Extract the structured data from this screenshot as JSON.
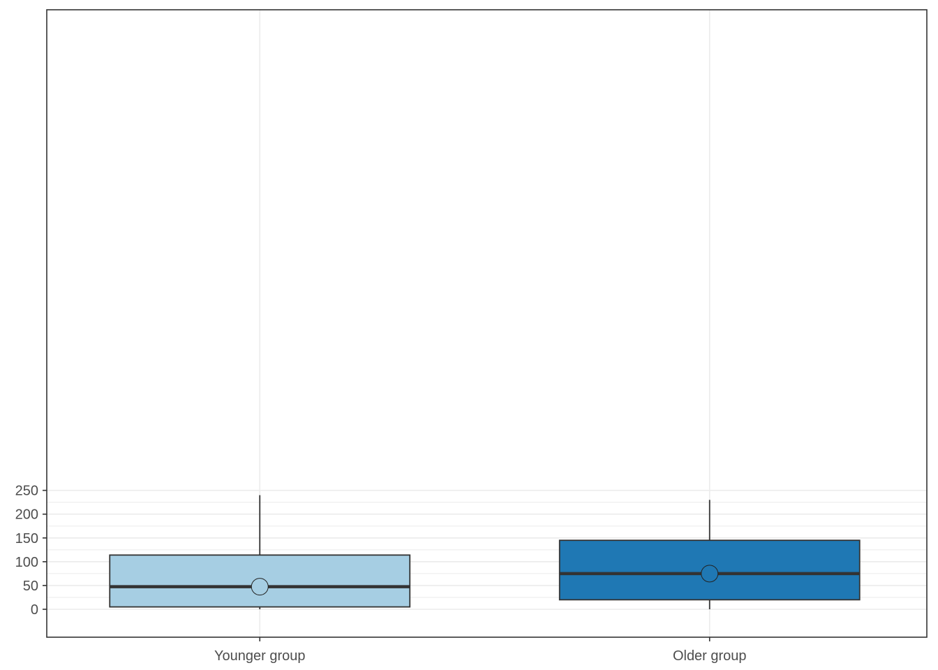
{
  "chart_data": {
    "type": "boxplot",
    "categories": [
      "Younger group",
      "Older group"
    ],
    "boxes": [
      {
        "category": "Younger group",
        "whisker_low": 0,
        "q1": 5,
        "median": 47.5,
        "mean": 47.5,
        "q3": 114,
        "whisker_high": 240,
        "fill": "#a6cee3"
      },
      {
        "category": "Older group",
        "whisker_low": 0,
        "q1": 20,
        "median": 75,
        "mean": 75,
        "q3": 145,
        "whisker_high": 230,
        "fill": "#1f78b4"
      }
    ],
    "y_ticks": [
      0,
      50,
      100,
      150,
      200,
      250
    ],
    "ylim": [
      -12,
      252
    ],
    "grid": true,
    "legend": "none",
    "colors": {
      "grid": "#ebebeb",
      "panel_border": "#333333",
      "median_line": "#333333",
      "tick_text": "#4d4d4d"
    }
  }
}
